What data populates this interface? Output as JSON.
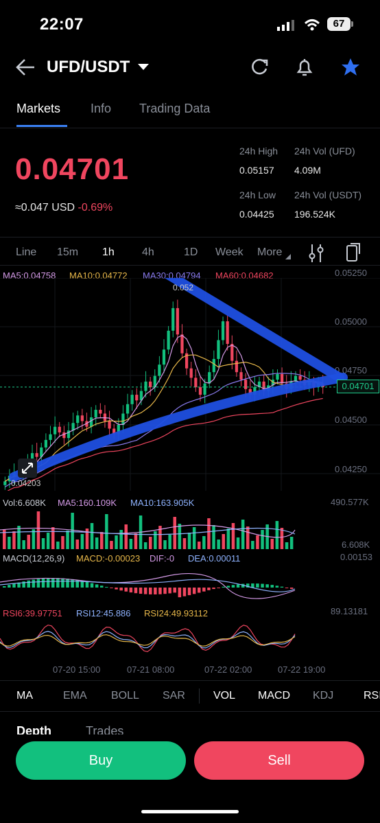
{
  "status": {
    "time": "22:07",
    "battery": "67"
  },
  "header": {
    "pair": "UFD/USDT"
  },
  "tabs": [
    "Markets",
    "Info",
    "Trading Data"
  ],
  "ticker": {
    "price": "0.04701",
    "approx": "≈0.047",
    "currency": "USD",
    "change": "-0.69%",
    "high_label": "24h High",
    "high": "0.05157",
    "vol_ufd_label": "24h Vol (UFD)",
    "vol_ufd": "4.09M",
    "low_label": "24h Low",
    "low": "0.04425",
    "vol_usdt_label": "24h Vol  (USDT)",
    "vol_usdt": "196.524K"
  },
  "intervals": [
    "Line",
    "15m",
    "1h",
    "4h",
    "1D",
    "Week",
    "More"
  ],
  "ma_legend": {
    "ma5": "MA5:0.04758",
    "ma10": "MA10:0.04772",
    "ma30": "MA30:0.04794",
    "ma60": "MA60:0.04682"
  },
  "price_axis": [
    "0.05250",
    "0.05000",
    "0.04750",
    "0.04500",
    "0.04250"
  ],
  "current_price_tag": "0.04701",
  "high_marker": "0.052",
  "low_marker": "0.04203",
  "vol_legend": {
    "vol": "Vol:6.608K",
    "ma5": "MA5:160.109K",
    "ma10": "MA10:163.905K"
  },
  "vol_axis": {
    "top": "490.577K",
    "bottom": "6.608K"
  },
  "macd_legend": {
    "params": "MACD(12,26,9)",
    "macd": "MACD:-0.00023",
    "dif": "DIF:-0",
    "dea": "DEA:0.00011"
  },
  "macd_axis_top": "0.00153",
  "rsi_legend": {
    "rsi6": "RSI6:39.97751",
    "rsi12": "RSI12:45.886",
    "rsi24": "RSI24:49.93112"
  },
  "rsi_axis_top": "89.13181",
  "time_axis": [
    "07-20 15:00",
    "07-21 08:00",
    "07-22 02:00",
    "07-22 19:00"
  ],
  "indicator_tabs": [
    "MA",
    "EMA",
    "BOLL",
    "SAR",
    "VOL",
    "MACD",
    "KDJ",
    "RSI"
  ],
  "bottom_tabs": [
    "Depth",
    "Trades"
  ],
  "actions": {
    "buy": "Buy",
    "sell": "Sell"
  },
  "colors": {
    "up": "#12c07e",
    "down": "#f0465f",
    "accent": "#3b82f6",
    "annotation": "#1f4fe0"
  },
  "chart_data": {
    "type": "candlestick",
    "ylim": [
      0.0415,
      0.0528
    ],
    "ma_lines": [
      "MA5",
      "MA10",
      "MA30",
      "MA60"
    ],
    "closes": [
      0.042,
      0.0423,
      0.0425,
      0.0424,
      0.0428,
      0.0431,
      0.0435,
      0.0433,
      0.0438,
      0.0442,
      0.0445,
      0.0449,
      0.0446,
      0.0443,
      0.0447,
      0.0451,
      0.0455,
      0.0452,
      0.0449,
      0.0454,
      0.0458,
      0.0456,
      0.0452,
      0.0448,
      0.0445,
      0.045,
      0.0456,
      0.0461,
      0.0466,
      0.0463,
      0.0468,
      0.0473,
      0.047,
      0.0476,
      0.0482,
      0.049,
      0.05,
      0.0512,
      0.0498,
      0.0488,
      0.048,
      0.0475,
      0.047,
      0.0466,
      0.0472,
      0.0478,
      0.0485,
      0.0495,
      0.0505,
      0.0493,
      0.0484,
      0.0478,
      0.0474,
      0.0469,
      0.0466,
      0.047,
      0.0473,
      0.0468,
      0.0471,
      0.0474,
      0.0477,
      0.0472,
      0.0469,
      0.0473,
      0.0476,
      0.0474,
      0.0471,
      0.0473,
      0.047,
      0.0472,
      0.047
    ],
    "volume_bars": 60,
    "macd_bars": 60
  }
}
